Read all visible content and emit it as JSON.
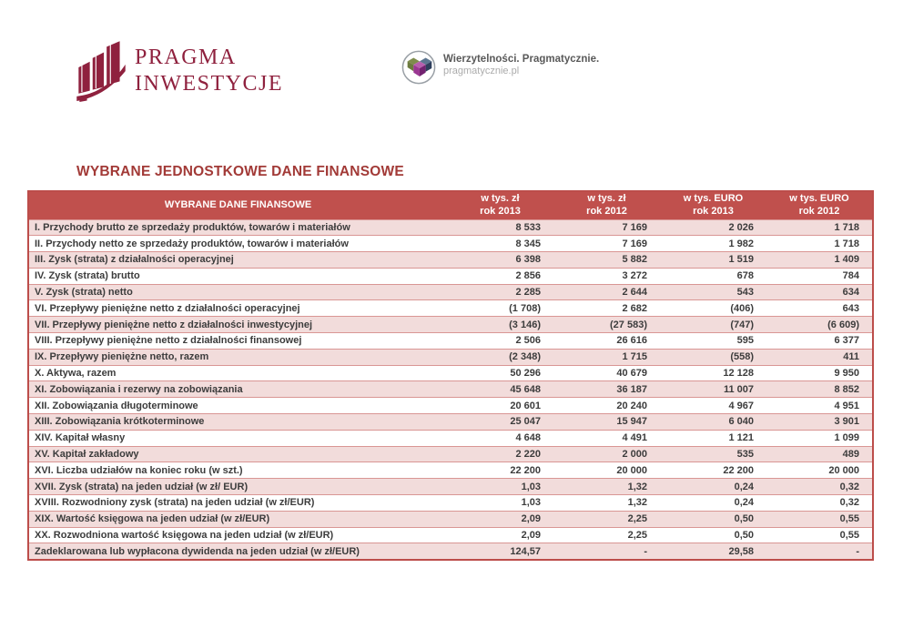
{
  "brand": {
    "logo_text": "PRAGMA\nINWESTYCJE",
    "color": "#8F213E"
  },
  "partner": {
    "tagline": "Wierzytelności. Pragmatycznie.",
    "site": "pragmatycznie.pl"
  },
  "page_title": "WYBRANE JEDNOSTKOWE DANE FINANSOWE",
  "table": {
    "header": {
      "label": "WYBRANE DANE FINANSOWE",
      "columns": [
        {
          "unit": "w tys. zł",
          "period": "rok 2013"
        },
        {
          "unit": "w tys. zł",
          "period": "rok 2012"
        },
        {
          "unit": "w tys. EURO",
          "period": "rok 2013"
        },
        {
          "unit": "w tys. EURO",
          "period": "rok 2012"
        }
      ]
    },
    "rows": [
      {
        "label": "I. Przychody brutto ze sprzedaży produktów, towarów i materiałów",
        "values": [
          "8 533",
          "7 169",
          "2 026",
          "1 718"
        ]
      },
      {
        "label": "II. Przychody netto ze sprzedaży produktów, towarów i materiałów",
        "values": [
          "8 345",
          "7 169",
          "1 982",
          "1 718"
        ]
      },
      {
        "label": "III. Zysk (strata) z działalności operacyjnej",
        "values": [
          "6 398",
          "5 882",
          "1 519",
          "1 409"
        ]
      },
      {
        "label": "IV. Zysk (strata) brutto",
        "values": [
          "2 856",
          "3 272",
          "678",
          "784"
        ]
      },
      {
        "label": "V. Zysk (strata) netto",
        "values": [
          "2 285",
          "2 644",
          "543",
          "634"
        ]
      },
      {
        "label": "VI. Przepływy pieniężne netto z działalności operacyjnej",
        "values": [
          "(1 708)",
          "2 682",
          "(406)",
          "643"
        ]
      },
      {
        "label": "VII. Przepływy pieniężne netto z działalności inwestycyjnej",
        "values": [
          "(3 146)",
          "(27 583)",
          "(747)",
          "(6 609)"
        ]
      },
      {
        "label": "VIII. Przepływy pieniężne netto z działalności finansowej",
        "values": [
          "2 506",
          "26 616",
          "595",
          "6 377"
        ]
      },
      {
        "label": "IX. Przepływy pieniężne netto, razem",
        "values": [
          "(2 348)",
          "1 715",
          "(558)",
          "411"
        ]
      },
      {
        "label": "X. Aktywa, razem",
        "values": [
          "50 296",
          "40 679",
          "12 128",
          "9 950"
        ]
      },
      {
        "label": "XI. Zobowiązania i rezerwy na zobowiązania",
        "values": [
          "45 648",
          "36 187",
          "11 007",
          "8 852"
        ]
      },
      {
        "label": "XII. Zobowiązania długoterminowe",
        "values": [
          "20 601",
          "20 240",
          "4 967",
          "4 951"
        ]
      },
      {
        "label": "XIII. Zobowiązania krótkoterminowe",
        "values": [
          "25 047",
          "15 947",
          "6 040",
          "3 901"
        ]
      },
      {
        "label": "XIV. Kapitał własny",
        "values": [
          "4 648",
          "4 491",
          "1 121",
          "1 099"
        ]
      },
      {
        "label": "XV. Kapitał zakładowy",
        "values": [
          "2 220",
          "2 000",
          "535",
          "489"
        ]
      },
      {
        "label": "XVI. Liczba udziałów na koniec roku (w szt.)",
        "values": [
          "22 200",
          "20 000",
          "22 200",
          "20 000"
        ]
      },
      {
        "label": "XVII. Zysk (strata) na jeden udział (w zł/ EUR)",
        "values": [
          "1,03",
          "1,32",
          "0,24",
          "0,32"
        ]
      },
      {
        "label": "XVIII. Rozwodniony zysk (strata) na jeden udział (w zł/EUR)",
        "values": [
          "1,03",
          "1,32",
          "0,24",
          "0,32"
        ]
      },
      {
        "label": "XIX. Wartość księgowa na jeden udział (w zł/EUR)",
        "values": [
          "2,09",
          "2,25",
          "0,50",
          "0,55"
        ]
      },
      {
        "label": "XX. Rozwodniona wartość księgowa na jeden udział (w zł/EUR)",
        "values": [
          "2,09",
          "2,25",
          "0,50",
          "0,55"
        ]
      },
      {
        "label": "Zadeklarowana lub wypłacona dywidenda na jeden udział (w zł/EUR)",
        "values": [
          "124,57",
          "-",
          "29,58",
          "-"
        ]
      }
    ]
  },
  "colors": {
    "brand_maroon": "#8F213E",
    "title_red": "#A23A37",
    "table_header_bg": "#C0504D",
    "row_alt_pink": "#F2DCDB",
    "row_border": "#D99694",
    "text_dark": "#3C3C3C"
  }
}
